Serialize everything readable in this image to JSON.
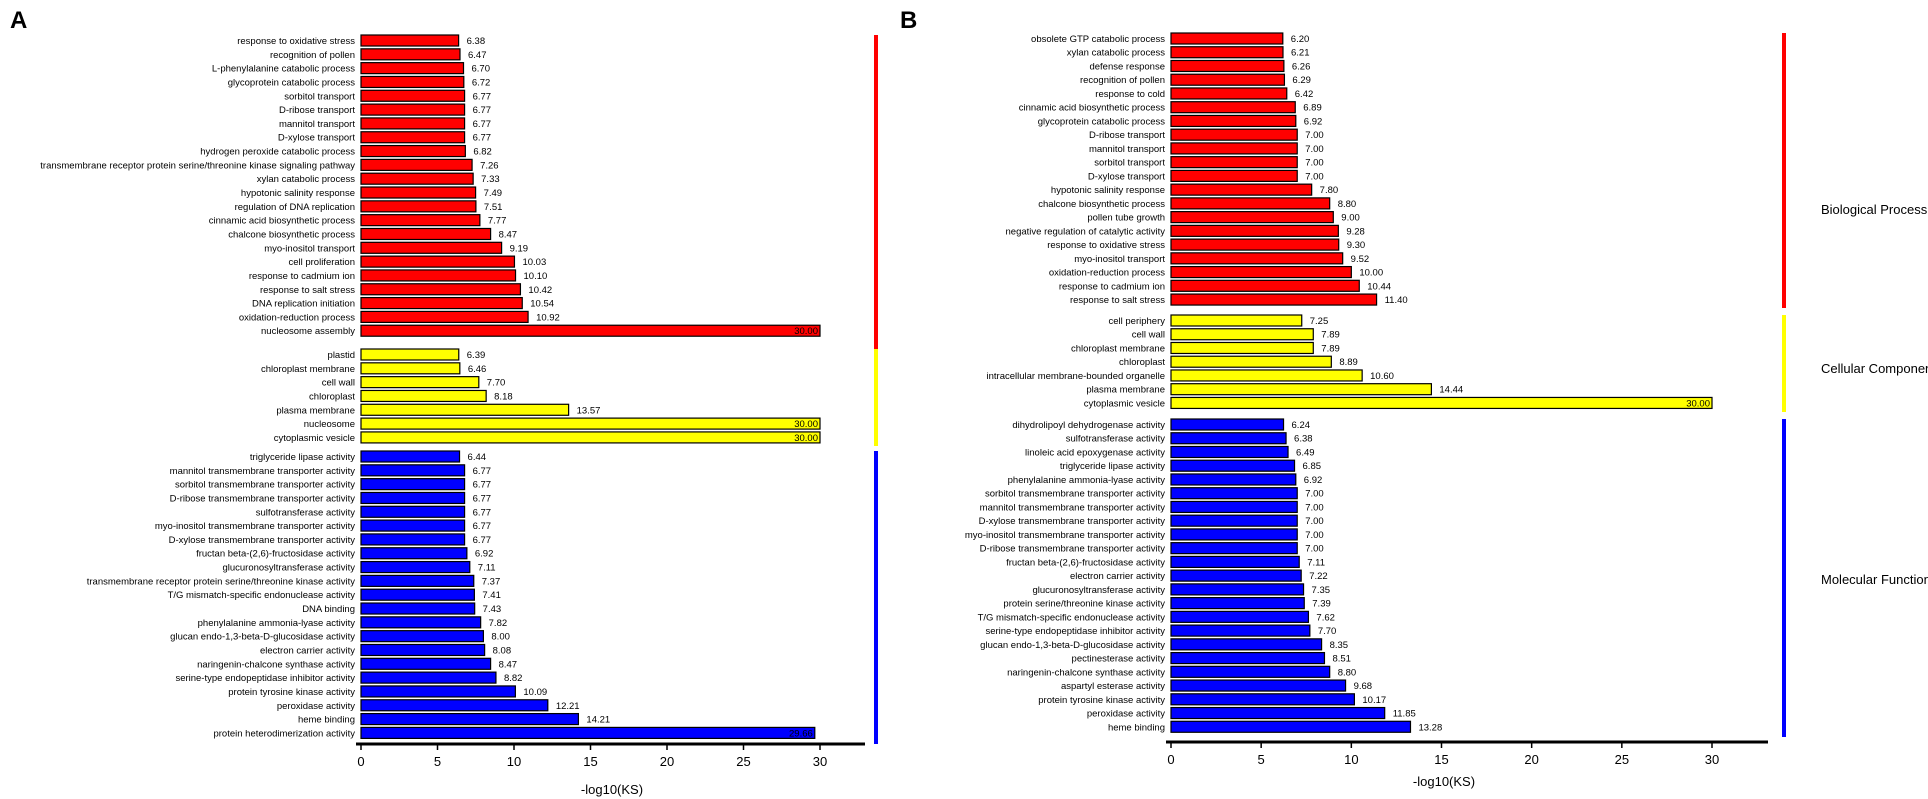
{
  "colors": {
    "bp": "#ff0000",
    "cc": "#ffff00",
    "mf": "#0000ff",
    "stroke": "#000000"
  },
  "chart_data": [
    {
      "type": "bar",
      "orientation": "horizontal",
      "panel": "A",
      "xlabel": "-log10(KS)",
      "xlim": [
        0,
        30
      ],
      "xticks": [
        "0",
        "5",
        "10",
        "15",
        "20",
        "25",
        "30"
      ],
      "groups": [
        {
          "key": "bp",
          "labels": [
            "response to oxidative stress",
            "recognition of pollen",
            "L-phenylalanine catabolic process",
            "glycoprotein catabolic process",
            "sorbitol transport",
            "D-ribose transport",
            "mannitol transport",
            "D-xylose transport",
            "hydrogen peroxide catabolic process",
            "transmembrane receptor protein serine/threonine kinase signaling pathway",
            "xylan catabolic process",
            "hypotonic salinity response",
            "regulation of DNA replication",
            "cinnamic acid biosynthetic process",
            "chalcone biosynthetic process",
            "myo-inositol transport",
            "cell proliferation",
            "response to cadmium ion",
            "response to salt stress",
            "DNA replication initiation",
            "oxidation-reduction process",
            "nucleosome assembly"
          ],
          "values": [
            6.38,
            6.47,
            6.7,
            6.72,
            6.77,
            6.77,
            6.77,
            6.77,
            6.82,
            7.26,
            7.33,
            7.49,
            7.51,
            7.77,
            8.47,
            9.19,
            10.03,
            10.1,
            10.42,
            10.54,
            10.92,
            30.0
          ],
          "value_labels": [
            "6.38",
            "6.47",
            "6.70",
            "6.72",
            "6.77",
            "6.77",
            "6.77",
            "6.77",
            "6.82",
            "7.26",
            "7.33",
            "7.49",
            "7.51",
            "7.77",
            "8.47",
            "9.19",
            "10.03",
            "10.10",
            "10.42",
            "10.54",
            "10.92",
            "30.00"
          ]
        },
        {
          "key": "cc",
          "labels": [
            "plastid",
            "chloroplast membrane",
            "cell wall",
            "chloroplast",
            "plasma membrane",
            "nucleosome",
            "cytoplasmic vesicle"
          ],
          "values": [
            6.39,
            6.46,
            7.7,
            8.18,
            13.57,
            30.0,
            30.0
          ],
          "value_labels": [
            "6.39",
            "6.46",
            "7.70",
            "8.18",
            "13.57",
            "30.00",
            "30.00"
          ]
        },
        {
          "key": "mf",
          "labels": [
            "triglyceride lipase activity",
            "mannitol transmembrane transporter activity",
            "sorbitol transmembrane transporter activity",
            "D-ribose transmembrane transporter activity",
            "sulfotransferase activity",
            "myo-inositol transmembrane transporter activity",
            "D-xylose transmembrane transporter activity",
            "fructan beta-(2,6)-fructosidase activity",
            "glucuronosyltransferase activity",
            "transmembrane receptor protein serine/threonine kinase activity",
            "T/G mismatch-specific endonuclease activity",
            "DNA binding",
            "phenylalanine ammonia-lyase activity",
            "glucan endo-1,3-beta-D-glucosidase activity",
            "electron carrier activity",
            "naringenin-chalcone synthase activity",
            "serine-type endopeptidase inhibitor activity",
            "protein tyrosine kinase activity",
            "peroxidase activity",
            "heme binding",
            "protein heterodimerization activity"
          ],
          "values": [
            6.44,
            6.77,
            6.77,
            6.77,
            6.77,
            6.77,
            6.77,
            6.92,
            7.11,
            7.37,
            7.41,
            7.43,
            7.82,
            8.0,
            8.08,
            8.47,
            8.82,
            10.09,
            12.21,
            14.21,
            29.66
          ],
          "value_labels": [
            "6.44",
            "6.77",
            "6.77",
            "6.77",
            "6.77",
            "6.77",
            "6.77",
            "6.92",
            "7.11",
            "7.37",
            "7.41",
            "7.43",
            "7.82",
            "8.00",
            "8.08",
            "8.47",
            "8.82",
            "10.09",
            "12.21",
            "14.21",
            "29.66"
          ]
        }
      ]
    },
    {
      "type": "bar",
      "orientation": "horizontal",
      "panel": "B",
      "xlabel": "-log10(KS)",
      "xlim": [
        0,
        30
      ],
      "xticks": [
        "0",
        "5",
        "10",
        "15",
        "20",
        "25",
        "30"
      ],
      "groups": [
        {
          "key": "bp",
          "name": "Biological Process",
          "labels": [
            "obsolete GTP catabolic process",
            "xylan catabolic process",
            "defense response",
            "recognition of pollen",
            "response to cold",
            "cinnamic acid biosynthetic process",
            "glycoprotein catabolic process",
            "D-ribose transport",
            "mannitol transport",
            "sorbitol transport",
            "D-xylose transport",
            "hypotonic salinity response",
            "chalcone biosynthetic process",
            "pollen tube growth",
            "negative regulation of catalytic activity",
            "response to oxidative stress",
            "myo-inositol transport",
            "oxidation-reduction process",
            "response to cadmium ion",
            "response to salt stress"
          ],
          "values": [
            6.2,
            6.21,
            6.26,
            6.29,
            6.42,
            6.89,
            6.92,
            7.0,
            7.0,
            7.0,
            7.0,
            7.8,
            8.8,
            9.0,
            9.28,
            9.3,
            9.52,
            10.0,
            10.44,
            11.4
          ],
          "value_labels": [
            "6.20",
            "6.21",
            "6.26",
            "6.29",
            "6.42",
            "6.89",
            "6.92",
            "7.00",
            "7.00",
            "7.00",
            "7.00",
            "7.80",
            "8.80",
            "9.00",
            "9.28",
            "9.30",
            "9.52",
            "10.00",
            "10.44",
            "11.40"
          ]
        },
        {
          "key": "cc",
          "name": "Cellular Component",
          "labels": [
            "cell periphery",
            "cell wall",
            "chloroplast membrane",
            "chloroplast",
            "intracellular membrane-bounded organelle",
            "plasma membrane",
            "cytoplasmic vesicle"
          ],
          "values": [
            7.25,
            7.89,
            7.89,
            8.89,
            10.6,
            14.44,
            30.0
          ],
          "value_labels": [
            "7.25",
            "7.89",
            "7.89",
            "8.89",
            "10.60",
            "14.44",
            "30.00"
          ]
        },
        {
          "key": "mf",
          "name": "Molecular Function",
          "labels": [
            "dihydrolipoyl dehydrogenase activity",
            "sulfotransferase activity",
            "linoleic acid epoxygenase activity",
            "triglyceride lipase activity",
            "phenylalanine ammonia-lyase activity",
            "sorbitol transmembrane transporter activity",
            "mannitol transmembrane transporter activity",
            "D-xylose transmembrane transporter activity",
            "myo-inositol transmembrane transporter activity",
            "D-ribose transmembrane transporter activity",
            "fructan beta-(2,6)-fructosidase activity",
            "electron carrier activity",
            "glucuronosyltransferase activity",
            "protein serine/threonine kinase activity",
            "T/G mismatch-specific endonuclease activity",
            "serine-type endopeptidase inhibitor activity",
            "glucan endo-1,3-beta-D-glucosidase activity",
            "pectinesterase activity",
            "naringenin-chalcone synthase activity",
            "aspartyl esterase activity",
            "protein tyrosine kinase activity",
            "peroxidase activity",
            "heme binding"
          ],
          "values": [
            6.24,
            6.38,
            6.49,
            6.85,
            6.92,
            7.0,
            7.0,
            7.0,
            7.0,
            7.0,
            7.11,
            7.22,
            7.35,
            7.39,
            7.62,
            7.7,
            8.35,
            8.51,
            8.8,
            9.68,
            10.17,
            11.85,
            13.28
          ],
          "value_labels": [
            "6.24",
            "6.38",
            "6.49",
            "6.85",
            "6.92",
            "7.00",
            "7.00",
            "7.00",
            "7.00",
            "7.00",
            "7.11",
            "7.22",
            "7.35",
            "7.39",
            "7.62",
            "7.70",
            "8.35",
            "8.51",
            "8.80",
            "9.68",
            "10.17",
            "11.85",
            "13.28"
          ]
        }
      ]
    }
  ]
}
